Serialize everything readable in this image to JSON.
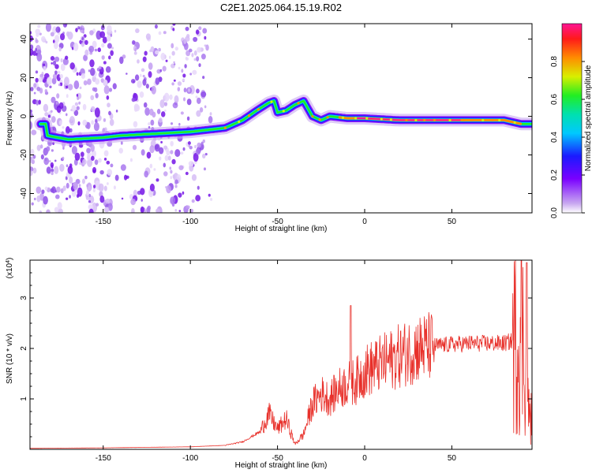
{
  "title": "C2E1.2025.064.15.19.R02",
  "chart_data": [
    {
      "type": "heatmap",
      "xlabel": "Height of straight line (km)",
      "ylabel": "Frequency (Hz)",
      "xlim": [
        -192,
        96
      ],
      "ylim": [
        -50,
        48
      ],
      "xticks": [
        -150,
        -100,
        -50,
        0,
        50
      ],
      "yticks": [
        -40,
        -20,
        0,
        20,
        40
      ],
      "colorbar": {
        "label": "Normalized spectral amplitude",
        "range": [
          0,
          1
        ],
        "ticks": [
          "0.0",
          "0.2",
          "0.4",
          "0.6",
          "0.8"
        ]
      },
      "ridge": [
        {
          "x": -182,
          "f": -10
        },
        {
          "x": -170,
          "f": -12
        },
        {
          "x": -150,
          "f": -11
        },
        {
          "x": -140,
          "f": -10
        },
        {
          "x": -120,
          "f": -9
        },
        {
          "x": -100,
          "f": -8
        },
        {
          "x": -90,
          "f": -7
        },
        {
          "x": -80,
          "f": -6
        },
        {
          "x": -70,
          "f": -2
        },
        {
          "x": -62,
          "f": 3
        },
        {
          "x": -55,
          "f": 7
        },
        {
          "x": -52,
          "f": 8
        },
        {
          "x": -50,
          "f": 2
        },
        {
          "x": -45,
          "f": 3
        },
        {
          "x": -40,
          "f": 6
        },
        {
          "x": -35,
          "f": 8
        },
        {
          "x": -30,
          "f": 0
        },
        {
          "x": -25,
          "f": -2
        },
        {
          "x": -20,
          "f": 0
        },
        {
          "x": -10,
          "f": -1
        },
        {
          "x": 0,
          "f": -1
        },
        {
          "x": 20,
          "f": -2
        },
        {
          "x": 40,
          "f": -2
        },
        {
          "x": 60,
          "f": -2
        },
        {
          "x": 80,
          "f": -2
        },
        {
          "x": 90,
          "f": -4
        },
        {
          "x": 96,
          "f": -4
        }
      ]
    },
    {
      "type": "line",
      "xlabel": "Height of straight line (km)",
      "ylabel": "SNR (10 * v/v)",
      "exponent_label": "(x10",
      "exponent_power": "4",
      "exponent_close": ")",
      "xlim": [
        -192,
        96
      ],
      "ylim": [
        0,
        3.75
      ],
      "xticks": [
        -150,
        -100,
        -50,
        0,
        50
      ],
      "yticks": [
        1,
        2,
        3
      ],
      "color": "#e8302a",
      "x": [
        -192,
        -150,
        -100,
        -80,
        -70,
        -60,
        -55,
        -50,
        -45,
        -40,
        -35,
        -30,
        -25,
        -20,
        -15,
        -10,
        -5,
        0,
        10,
        20,
        30,
        40,
        50,
        60,
        70,
        80,
        85,
        88,
        90,
        92,
        94,
        96
      ],
      "y": [
        0.02,
        0.03,
        0.05,
        0.08,
        0.15,
        0.35,
        0.7,
        0.4,
        0.6,
        0.1,
        0.3,
        0.9,
        1.1,
        1.0,
        1.2,
        1.3,
        1.35,
        1.55,
        1.7,
        1.85,
        2.0,
        2.05,
        2.08,
        2.1,
        2.1,
        2.1,
        2.15,
        2.2,
        2.4,
        1.8,
        0.7,
        0.6
      ],
      "peaks": [
        {
          "x": -8,
          "y": 2.85
        },
        {
          "x": 93,
          "y": 3.7
        }
      ]
    }
  ]
}
